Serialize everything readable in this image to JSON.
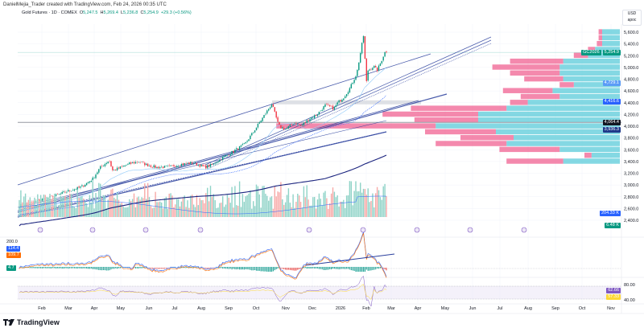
{
  "header": {
    "credit": "DanielMejia_Trader created with TradingView.com, Feb 24, 2026 00:35 UTC"
  },
  "legend": {
    "symbol": "Gold Futures · 1D · COMEX",
    "open_label": "O",
    "open": "5,247.5",
    "high_label": "H",
    "high": "5,269.4",
    "low_label": "L",
    "low": "5,236.8",
    "close_label": "C",
    "close": "5,254.9",
    "change": "+29.3 (+0.56%)"
  },
  "currency": {
    "unit": "USD",
    "mode": "apoc"
  },
  "brand": {
    "name": "TradingView"
  },
  "colors": {
    "up": "#089981",
    "down": "#f23645",
    "volume_up": "#8fd3c7",
    "volume_down": "#f7a9a7",
    "profile_up": "#5bcbd9",
    "profile_down": "#f06292",
    "trend": "#2a3f9d",
    "accent": "#2962ff"
  },
  "price_tags": [
    {
      "text": "GC2026",
      "value": "5,254.9",
      "color": "#089981",
      "price": 5254.9
    },
    {
      "text": "",
      "value": "4,729.1",
      "color": "#5b9cf6",
      "price": 4729.1
    },
    {
      "text": "",
      "value": "4,416.6",
      "color": "#2962ff",
      "price": 4416.6
    },
    {
      "text": "",
      "value": "4,064.4",
      "color": "#131722",
      "price": 4064.4
    },
    {
      "text": "",
      "value": "3,936.3",
      "color": "#1e3a8a",
      "price": 3936.3
    },
    {
      "text": "",
      "value": "204.33 K",
      "color": "#2962ff",
      "price": 2510
    },
    {
      "text": "",
      "value": "6.48 K",
      "color": "#089981",
      "price": 2305
    }
  ],
  "indicators": {
    "macd": {
      "axis_label": "200.0",
      "tags": [
        {
          "value": "114.4",
          "color": "#2962ff"
        },
        {
          "value": "109.7",
          "color": "#ff6d00"
        },
        {
          "value": "4.7",
          "color": "#089981"
        }
      ]
    },
    "rsi": {
      "axis_top": "80.00",
      "axis_bottom": "40.00",
      "tags": [
        {
          "value": "62.66",
          "color": "#7e57c2"
        },
        {
          "value": "57.33",
          "color": "#fdd835"
        }
      ]
    }
  },
  "chart_data": {
    "type": "candlestick",
    "title": "Gold Futures · 1D · COMEX",
    "y_axis": {
      "ticks": [
        "5,600.0",
        "5,400.0",
        "5,200.0",
        "5,000.0",
        "4,800.0",
        "4,600.0",
        "4,400.0",
        "4,200.0",
        "4,000.0",
        "3,800.0",
        "3,600.0",
        "3,400.0",
        "3,200.0",
        "3,000.0",
        "2,800.0",
        "2,600.0",
        "2,400.0"
      ],
      "range": [
        2300,
        5700
      ]
    },
    "x_axis": {
      "ticks": [
        "Feb",
        "Mar",
        "Apr",
        "May",
        "Jun",
        "Jul",
        "Aug",
        "Sep",
        "Oct",
        "Nov",
        "Dec",
        "2026",
        "Feb",
        "Mar",
        "Apr",
        "May",
        "Jun",
        "Jul",
        "Aug",
        "Sep",
        "Oct",
        "Nov"
      ]
    },
    "close_path": [
      [
        "2025-01-06",
        2650
      ],
      [
        "2025-01-20",
        2700
      ],
      [
        "2025-02-03",
        2760
      ],
      [
        "2025-02-17",
        2820
      ],
      [
        "2025-03-01",
        2900
      ],
      [
        "2025-03-15",
        2960
      ],
      [
        "2025-03-29",
        3100
      ],
      [
        "2025-04-08",
        3300
      ],
      [
        "2025-04-18",
        3420
      ],
      [
        "2025-04-22",
        3240
      ],
      [
        "2025-05-01",
        3300
      ],
      [
        "2025-05-10",
        3360
      ],
      [
        "2025-05-20",
        3400
      ],
      [
        "2025-05-29",
        3340
      ],
      [
        "2025-06-10",
        3300
      ],
      [
        "2025-06-25",
        3310
      ],
      [
        "2025-07-08",
        3350
      ],
      [
        "2025-07-22",
        3380
      ],
      [
        "2025-08-05",
        3300
      ],
      [
        "2025-08-14",
        3350
      ],
      [
        "2025-08-23",
        3450
      ],
      [
        "2025-09-05",
        3560
      ],
      [
        "2025-09-19",
        3700
      ],
      [
        "2025-09-28",
        3900
      ],
      [
        "2025-10-06",
        4100
      ],
      [
        "2025-10-17",
        4380
      ],
      [
        "2025-10-24",
        4000
      ],
      [
        "2025-11-01",
        3950
      ],
      [
        "2025-11-10",
        4060
      ],
      [
        "2025-11-18",
        4000
      ],
      [
        "2025-11-27",
        4120
      ],
      [
        "2025-12-06",
        4200
      ],
      [
        "2025-12-15",
        4360
      ],
      [
        "2025-12-24",
        4300
      ],
      [
        "2025-12-28",
        4400
      ],
      [
        "2026-01-05",
        4500
      ],
      [
        "2026-01-12",
        4650
      ],
      [
        "2026-01-20",
        4900
      ],
      [
        "2026-01-26",
        5400
      ],
      [
        "2026-01-28",
        5560
      ],
      [
        "2026-01-31",
        4720
      ],
      [
        "2026-02-03",
        4950
      ],
      [
        "2026-02-10",
        5020
      ],
      [
        "2026-02-14",
        4950
      ],
      [
        "2026-02-19",
        5100
      ],
      [
        "2026-02-23",
        5254.9
      ]
    ],
    "volume_profile": [
      {
        "price": 5600,
        "up": 0.05,
        "down": 0.01
      },
      {
        "price": 5500,
        "up": 0.05,
        "down": 0.01
      },
      {
        "price": 5400,
        "up": 0.05,
        "down": 0.015
      },
      {
        "price": 5300,
        "up": 0.07,
        "down": 0.02
      },
      {
        "price": 5200,
        "up": 0.09,
        "down": 0.04
      },
      {
        "price": 5100,
        "up": 0.16,
        "down": 0.15
      },
      {
        "price": 5000,
        "up": 0.17,
        "down": 0.19
      },
      {
        "price": 4900,
        "up": 0.17,
        "down": 0.14
      },
      {
        "price": 4800,
        "up": 0.16,
        "down": 0.11
      },
      {
        "price": 4700,
        "up": 0.13,
        "down": 0.04
      },
      {
        "price": 4600,
        "up": 0.19,
        "down": 0.14
      },
      {
        "price": 4500,
        "up": 0.17,
        "down": 0.11
      },
      {
        "price": 4400,
        "up": 0.26,
        "down": 0.05
      },
      {
        "price": 4300,
        "up": 0.32,
        "down": 0.27
      },
      {
        "price": 4200,
        "up": 0.4,
        "down": 0.27
      },
      {
        "price": 4100,
        "up": 0.4,
        "down": 0.18
      },
      {
        "price": 4000,
        "up": 0.52,
        "down": 0.45
      },
      {
        "price": 3900,
        "up": 0.35,
        "down": 0.2
      },
      {
        "price": 3800,
        "up": 0.3,
        "down": 0.15
      },
      {
        "price": 3700,
        "up": 0.32,
        "down": 0.2
      },
      {
        "price": 3600,
        "up": 0.17,
        "down": 0.17
      },
      {
        "price": 3500,
        "up": 0.08,
        "down": 0.02
      },
      {
        "price": 3400,
        "up": 0.16,
        "down": 0.16
      }
    ],
    "grid": true
  }
}
